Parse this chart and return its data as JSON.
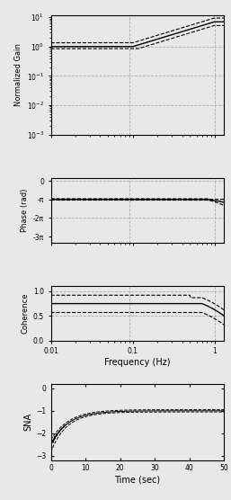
{
  "fig_width": 2.57,
  "fig_height": 5.56,
  "dpi": 100,
  "background_color": "#e8e8e8",
  "freq_min": 0.01,
  "freq_max": 1.3,
  "gain_ylim": [
    0.001,
    12
  ],
  "gain_yticks": [
    0.001,
    0.01,
    0.1,
    1,
    10
  ],
  "phase_ylim": [
    -10.5,
    0.5
  ],
  "phase_yticks": [
    0,
    -3.14159,
    -6.28318,
    -9.42478
  ],
  "phase_yticklabels": [
    "0",
    "-π",
    "-2π",
    "-3π"
  ],
  "coherence_ylim": [
    0.0,
    1.1
  ],
  "coherence_yticks": [
    0.0,
    0.5,
    1.0
  ],
  "sna_ylim": [
    -3.2,
    0.2
  ],
  "sna_yticks": [
    0.0,
    -1.0,
    -2.0,
    -3.0
  ],
  "time_max": 50,
  "vline_freq": 0.09,
  "grid_color": "#aaaaaa",
  "line_color": "#000000",
  "dashed_color": "#000000",
  "ylabel_gain": "Normalized Gain",
  "ylabel_phase": "Phase (rad)",
  "ylabel_coherence": "Coherence",
  "ylabel_sna": "SNA",
  "xlabel_freq": "Frequency (Hz)",
  "xlabel_time": "Time (sec)"
}
